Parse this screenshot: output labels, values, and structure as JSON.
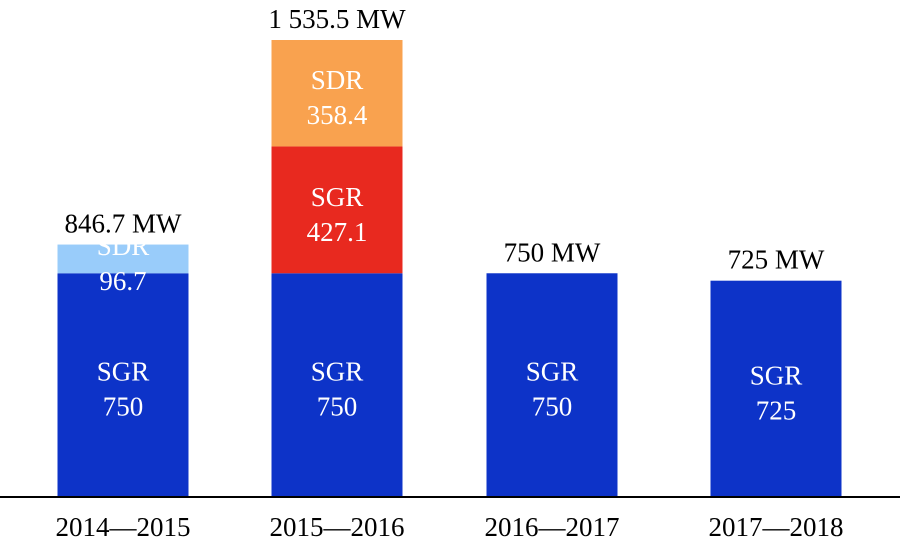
{
  "chart_data": {
    "type": "bar",
    "stacked": true,
    "categories": [
      "2014—2015",
      "2015—2016",
      "2016—2017",
      "2017—2018"
    ],
    "totals": [
      "846.7 MW",
      "1 535.5 MW",
      "750 MW",
      "725 MW"
    ],
    "stacks": [
      [
        {
          "name": "SGR",
          "value": 750,
          "label": "750",
          "color": "#0d33c8"
        },
        {
          "name": "SDR",
          "value": 96.7,
          "label": "96.7",
          "color": "#99ccfa"
        }
      ],
      [
        {
          "name": "SGR",
          "value": 750,
          "label": "750",
          "color": "#0d33c8"
        },
        {
          "name": "SGR",
          "value": 427.1,
          "label": "427.1",
          "color": "#e8291f"
        },
        {
          "name": "SDR",
          "value": 358.4,
          "label": "358.4",
          "color": "#f9a24f"
        }
      ],
      [
        {
          "name": "SGR",
          "value": 750,
          "label": "750",
          "color": "#0d33c8"
        }
      ],
      [
        {
          "name": "SGR",
          "value": 725,
          "label": "725",
          "color": "#0d33c8"
        }
      ]
    ],
    "ylim": [
      0,
      1535.5
    ],
    "axis_color": "#000000"
  }
}
